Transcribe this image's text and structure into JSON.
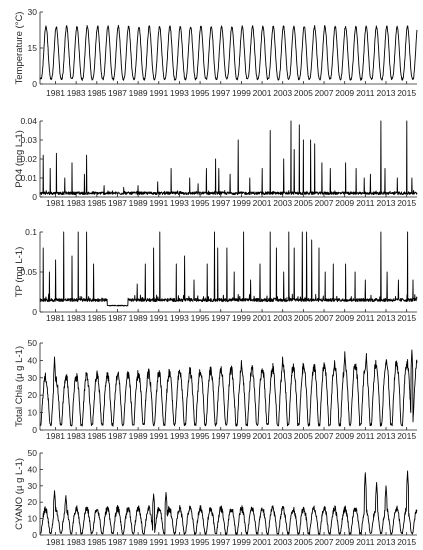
{
  "chart_data": [
    {
      "type": "line",
      "ylabel": "Temperature (°C)",
      "ylim": [
        0,
        30
      ],
      "yticks": [
        0,
        15,
        30
      ],
      "xlim": [
        1980,
        2016.5
      ],
      "xtick_labels": [
        "1981",
        "1983",
        "1985",
        "1987",
        "1989",
        "1991",
        "1993",
        "1995",
        "1997",
        "1999",
        "2001",
        "2003",
        "2005",
        "2007",
        "2009",
        "2011",
        "2013",
        "2015"
      ],
      "pattern": {
        "kind": "seasonal",
        "low": 2,
        "high": 24,
        "noise": 1
      }
    },
    {
      "type": "line",
      "ylabel": "PO4 (mg L-1)",
      "ylim": [
        0,
        0.04
      ],
      "yticks": [
        0,
        0.01,
        0.02,
        0.03,
        0.04
      ],
      "xlim": [
        1980,
        2016.5
      ],
      "xtick_labels": [
        "1981",
        "1983",
        "1985",
        "1987",
        "1989",
        "1991",
        "1993",
        "1995",
        "1997",
        "1999",
        "2001",
        "2003",
        "2005",
        "2007",
        "2009",
        "2011",
        "2013",
        "2015"
      ],
      "pattern": {
        "kind": "spiky",
        "base": 0.002,
        "noise": 0.0015,
        "spikes": [
          [
            1980.3,
            0.022
          ],
          [
            1981.0,
            0.015
          ],
          [
            1981.6,
            0.023
          ],
          [
            1982.4,
            0.01
          ],
          [
            1983.1,
            0.018
          ],
          [
            1984.3,
            0.012
          ],
          [
            1984.5,
            0.022
          ],
          [
            1986.2,
            0.006
          ],
          [
            1988.1,
            0.005
          ],
          [
            1989.5,
            0.006
          ],
          [
            1991.4,
            0.008
          ],
          [
            1992.7,
            0.015
          ],
          [
            1994.5,
            0.01
          ],
          [
            1995.3,
            0.007
          ],
          [
            1996.1,
            0.015
          ],
          [
            1997.0,
            0.02
          ],
          [
            1997.3,
            0.015
          ],
          [
            1998.4,
            0.012
          ],
          [
            1999.2,
            0.03
          ],
          [
            2000.3,
            0.01
          ],
          [
            2001.5,
            0.015
          ],
          [
            2002.3,
            0.035
          ],
          [
            2003.6,
            0.02
          ],
          [
            2004.3,
            0.04
          ],
          [
            2004.6,
            0.025
          ],
          [
            2005.1,
            0.038
          ],
          [
            2005.5,
            0.03
          ],
          [
            2006.2,
            0.03
          ],
          [
            2006.6,
            0.028
          ],
          [
            2007.3,
            0.018
          ],
          [
            2008.1,
            0.015
          ],
          [
            2009.6,
            0.018
          ],
          [
            2010.6,
            0.015
          ],
          [
            2011.4,
            0.01
          ],
          [
            2012.0,
            0.012
          ],
          [
            2013.0,
            0.04
          ],
          [
            2013.4,
            0.015
          ],
          [
            2014.6,
            0.01
          ],
          [
            2015.5,
            0.04
          ],
          [
            2016.0,
            0.01
          ]
        ]
      }
    },
    {
      "type": "line",
      "ylabel": "TP (mg L-1)",
      "ylim": [
        0,
        0.1
      ],
      "yticks": [
        0,
        0.05,
        0.1
      ],
      "xlim": [
        1980,
        2016.5
      ],
      "xtick_labels": [
        "1981",
        "1983",
        "1985",
        "1987",
        "1989",
        "1991",
        "1993",
        "1995",
        "1997",
        "1999",
        "2001",
        "2003",
        "2005",
        "2007",
        "2009",
        "2011",
        "2013",
        "2015"
      ],
      "pattern": {
        "kind": "spiky",
        "base": 0.015,
        "noise": 0.004,
        "dip": [
          1986.5,
          1988.5,
          0.008
        ],
        "spikes": [
          [
            1980.3,
            0.08
          ],
          [
            1980.9,
            0.05
          ],
          [
            1981.5,
            0.065
          ],
          [
            1982.3,
            0.1
          ],
          [
            1983.1,
            0.07
          ],
          [
            1983.7,
            0.1
          ],
          [
            1984.5,
            0.1
          ],
          [
            1985.2,
            0.06
          ],
          [
            1989.4,
            0.035
          ],
          [
            1990.2,
            0.06
          ],
          [
            1991.0,
            0.08
          ],
          [
            1991.6,
            0.1
          ],
          [
            1993.2,
            0.06
          ],
          [
            1994.0,
            0.07
          ],
          [
            1994.9,
            0.04
          ],
          [
            1996.2,
            0.06
          ],
          [
            1996.9,
            0.1
          ],
          [
            1997.2,
            0.08
          ],
          [
            1998.1,
            0.08
          ],
          [
            1998.8,
            0.05
          ],
          [
            1999.7,
            0.1
          ],
          [
            2000.4,
            0.04
          ],
          [
            2001.3,
            0.06
          ],
          [
            2002.3,
            0.1
          ],
          [
            2002.9,
            0.08
          ],
          [
            2003.6,
            0.05
          ],
          [
            2004.1,
            0.1
          ],
          [
            2004.6,
            0.08
          ],
          [
            2005.4,
            0.1
          ],
          [
            2005.8,
            0.1
          ],
          [
            2006.3,
            0.09
          ],
          [
            2007.0,
            0.08
          ],
          [
            2007.6,
            0.05
          ],
          [
            2008.4,
            0.06
          ],
          [
            2009.6,
            0.06
          ],
          [
            2010.5,
            0.05
          ],
          [
            2011.5,
            0.04
          ],
          [
            2013.0,
            0.1
          ],
          [
            2013.6,
            0.05
          ],
          [
            2014.7,
            0.04
          ],
          [
            2015.6,
            0.1
          ],
          [
            2016.1,
            0.04
          ]
        ]
      }
    },
    {
      "type": "line",
      "ylabel": "Total Chla (µ g L-1)",
      "ylim": [
        0,
        50
      ],
      "yticks": [
        0,
        10,
        20,
        30,
        40,
        50
      ],
      "xlim": [
        1980,
        2016.5
      ],
      "xtick_labels": [
        "1981",
        "1983",
        "1985",
        "1987",
        "1989",
        "1991",
        "1993",
        "1995",
        "1997",
        "1999",
        "2001",
        "2003",
        "2005",
        "2007",
        "2009",
        "2011",
        "2013",
        "2015"
      ],
      "pattern": {
        "kind": "bloom",
        "low": 3,
        "high": 30,
        "noise": 4,
        "trend": 0.25,
        "peaks": [
          [
            1981.4,
            42
          ],
          [
            1999.5,
            40
          ],
          [
            2003.5,
            42
          ],
          [
            2009.5,
            45
          ],
          [
            2011.6,
            44
          ],
          [
            2016.0,
            46
          ]
        ]
      }
    },
    {
      "type": "line",
      "ylabel": "CYANO (µ g L-1)",
      "ylim": [
        0,
        50
      ],
      "yticks": [
        0,
        10,
        20,
        30,
        40,
        50
      ],
      "xlim": [
        1980,
        2016.5
      ],
      "xtick_labels": [
        "1981",
        "1983",
        "1985",
        "1987",
        "1989",
        "1991",
        "1993",
        "1995",
        "1997",
        "1999",
        "2001",
        "2003",
        "2005",
        "2007",
        "2009",
        "2011",
        "2013",
        "2015"
      ],
      "pattern": {
        "kind": "bloom",
        "low": 1,
        "high": 16,
        "noise": 3,
        "trend": 0.0,
        "peaks": [
          [
            1981.4,
            27
          ],
          [
            1982.5,
            24
          ],
          [
            1991.0,
            25
          ],
          [
            1992.2,
            26
          ],
          [
            2011.5,
            38
          ],
          [
            2012.6,
            32
          ],
          [
            2013.5,
            30
          ],
          [
            2015.6,
            39
          ]
        ]
      }
    }
  ]
}
